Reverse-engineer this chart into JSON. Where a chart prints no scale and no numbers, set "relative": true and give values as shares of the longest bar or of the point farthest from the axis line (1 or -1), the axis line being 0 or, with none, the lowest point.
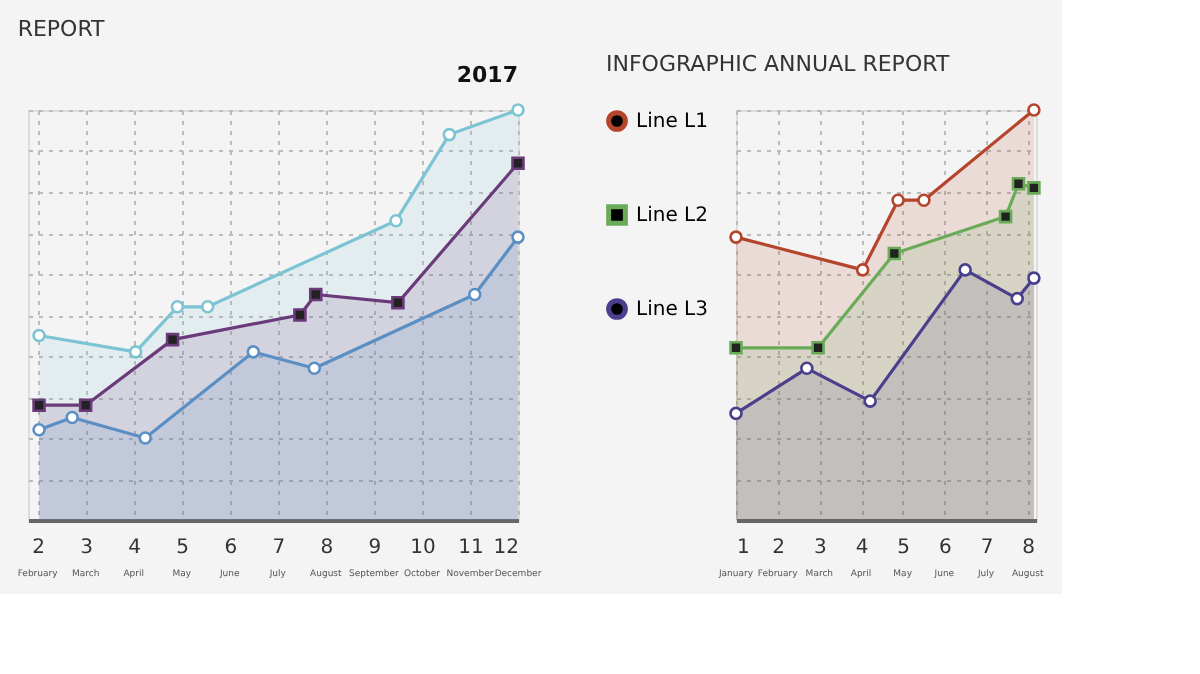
{
  "chart_data": [
    {
      "type": "area",
      "title": "REPORT",
      "subtitle": "2017",
      "relative": true,
      "grid": true,
      "legend": false,
      "xlim": [
        1.8,
        12
      ],
      "xticks": [
        2,
        3,
        4,
        5,
        6,
        7,
        8,
        9,
        10,
        11,
        12
      ],
      "annotations": [
        "February",
        "March",
        "April",
        "May",
        "June",
        "July",
        "August",
        "September",
        "October",
        "November",
        "December"
      ],
      "series": [
        {
          "color": "#7cc4d4",
          "marker": "circle",
          "x": [
            2.03,
            4.04,
            4.91,
            5.54,
            9.46,
            10.57,
            12
          ],
          "values": [
            0.45,
            0.41,
            0.52,
            0.52,
            0.73,
            0.94,
            1.0
          ]
        },
        {
          "color": "#6b3a7a",
          "marker": "square",
          "x": [
            2.03,
            3,
            4.81,
            7.46,
            7.79,
            9.5,
            12
          ],
          "values": [
            0.28,
            0.28,
            0.44,
            0.5,
            0.55,
            0.53,
            0.87
          ]
        },
        {
          "color": "#5b8fc4",
          "marker": "circle",
          "x": [
            2.03,
            2.72,
            4.24,
            6.49,
            7.76,
            11.1,
            12
          ],
          "values": [
            0.22,
            0.25,
            0.2,
            0.41,
            0.37,
            0.55,
            0.69
          ]
        }
      ]
    },
    {
      "type": "area",
      "title": "INFOGRAPHIC ANNUAL REPORT",
      "relative": true,
      "grid": true,
      "legend": "left",
      "xlim": [
        1,
        8.2
      ],
      "xticks": [
        1,
        2,
        3,
        4,
        5,
        6,
        7,
        8
      ],
      "annotations": [
        "January",
        "February",
        "March",
        "April",
        "May",
        "June",
        "July",
        "August"
      ],
      "series": [
        {
          "name": "Line L1",
          "color": "#b5442c",
          "marker": "circle",
          "x": [
            1,
            4.04,
            4.89,
            5.51,
            8.15
          ],
          "values": [
            0.69,
            0.61,
            0.78,
            0.78,
            1.0
          ]
        },
        {
          "name": "Line L2",
          "color": "#6aab5a",
          "marker": "square",
          "x": [
            1,
            2.97,
            4.8,
            7.47,
            7.78,
            8.15
          ],
          "values": [
            0.42,
            0.42,
            0.65,
            0.74,
            0.82,
            0.81
          ]
        },
        {
          "name": "Line L3",
          "color": "#4a3f8c",
          "marker": "circle",
          "x": [
            1,
            2.7,
            4.22,
            6.5,
            7.75,
            8.15
          ],
          "values": [
            0.26,
            0.37,
            0.29,
            0.61,
            0.54,
            0.59
          ]
        }
      ]
    }
  ]
}
